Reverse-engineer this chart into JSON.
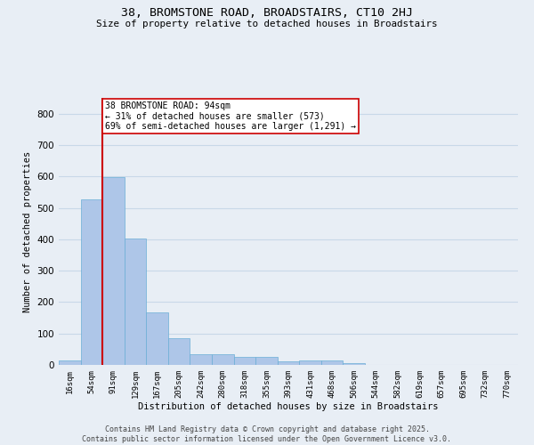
{
  "title": "38, BROMSTONE ROAD, BROADSTAIRS, CT10 2HJ",
  "subtitle": "Size of property relative to detached houses in Broadstairs",
  "xlabel": "Distribution of detached houses by size in Broadstairs",
  "ylabel": "Number of detached properties",
  "categories": [
    "16sqm",
    "54sqm",
    "91sqm",
    "129sqm",
    "167sqm",
    "205sqm",
    "242sqm",
    "280sqm",
    "318sqm",
    "355sqm",
    "393sqm",
    "431sqm",
    "468sqm",
    "506sqm",
    "544sqm",
    "582sqm",
    "619sqm",
    "657sqm",
    "695sqm",
    "732sqm",
    "770sqm"
  ],
  "bar_values": [
    15,
    528,
    597,
    403,
    168,
    86,
    35,
    35,
    25,
    25,
    10,
    13,
    13,
    5,
    0,
    0,
    0,
    0,
    0,
    0,
    0
  ],
  "bar_color": "#aec6e8",
  "bar_edge_color": "#6aaed6",
  "grid_color": "#c8d8e8",
  "background_color": "#e8eef5",
  "vline_x_index": 2,
  "vline_color": "#cc0000",
  "annotation_text": "38 BROMSTONE ROAD: 94sqm\n← 31% of detached houses are smaller (573)\n69% of semi-detached houses are larger (1,291) →",
  "annotation_box_color": "#ffffff",
  "annotation_box_edge": "#cc0000",
  "ylim": [
    0,
    850
  ],
  "yticks": [
    0,
    100,
    200,
    300,
    400,
    500,
    600,
    700,
    800
  ],
  "footer_line1": "Contains HM Land Registry data © Crown copyright and database right 2025.",
  "footer_line2": "Contains public sector information licensed under the Open Government Licence v3.0."
}
